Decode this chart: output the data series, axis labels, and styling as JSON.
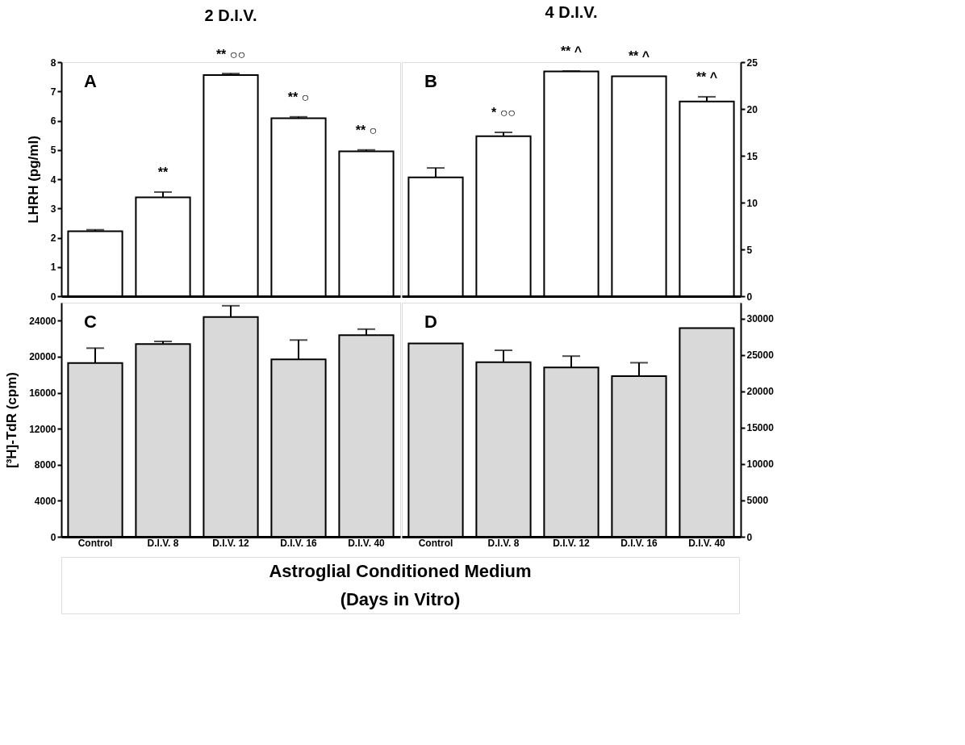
{
  "chart_data": [
    {
      "type": "bar",
      "title": "2 D.I.V.",
      "ylabel": "LHRH (pg/ml)",
      "categories": [
        "Control",
        "D.I.V. 8",
        "D.I.V. 12",
        "D.I.V. 16",
        "D.I.V. 40"
      ],
      "values": [
        2.22,
        3.38,
        7.56,
        6.08,
        4.95
      ],
      "errors": [
        0.05,
        0.18,
        0.05,
        0.05,
        0.05
      ],
      "color": "#ffffff",
      "ylim": [
        0,
        8
      ],
      "yticks": [
        0,
        1,
        2,
        3,
        4,
        5,
        6,
        7,
        8
      ],
      "grid": false,
      "tick_labels": "y",
      "annotations": [
        "A",
        {
          "text": "**",
          "x": "D.I.V. 8",
          "y": 3.56
        },
        {
          "text": "**  ○○",
          "x": "D.I.V. 12",
          "y": 7.59
        },
        {
          "text": "**  ○",
          "x": "D.I.V. 16",
          "y": 6.13
        },
        {
          "text": "**  ○",
          "x": "D.I.V. 40",
          "y": 5.0
        }
      ]
    },
    {
      "type": "bar",
      "title": "4 D.I.V.",
      "categories": [
        "Control",
        "D.I.V. 8",
        "D.I.V. 12",
        "D.I.V. 16",
        "D.I.V. 40"
      ],
      "values": [
        12.7,
        17.1,
        24.0,
        23.5,
        20.8
      ],
      "errors": [
        1.0,
        0.4,
        0.05,
        null,
        0.5
      ],
      "color": "#ffffff",
      "ylim": [
        0,
        25
      ],
      "yticks": [
        0,
        5,
        10,
        15,
        20,
        25
      ],
      "grid": false,
      "tick_labels": "y",
      "annotations": [
        "B",
        {
          "text": "*  ○○",
          "x": "D.I.V. 8",
          "y": 17.5
        },
        {
          "text": "**  ^",
          "x": "D.I.V. 12",
          "y": 24.05
        },
        {
          "text": "**  ^",
          "x": "D.I.V. 16",
          "y": 23.5
        },
        {
          "text": "**  ^",
          "x": "D.I.V. 40",
          "y": 21.3
        }
      ]
    },
    {
      "type": "bar",
      "ylabel": "[³H]-TdR (cpm)",
      "xlabel": "Astroglial Conditioned Medium\n(Days in Vitro)",
      "categories": [
        "Control",
        "D.I.V. 8",
        "D.I.V. 12",
        "D.I.V. 16",
        "D.I.V. 40"
      ],
      "values": [
        19300,
        21400,
        24400,
        19700,
        22400
      ],
      "errors": [
        1650,
        300,
        1260,
        2150,
        660
      ],
      "color": "#d9d9d9",
      "ylim": [
        0,
        26000
      ],
      "yticks": [
        0,
        4000,
        8000,
        12000,
        16000,
        20000,
        24000
      ],
      "grid": false,
      "annotations": [
        "C"
      ]
    },
    {
      "type": "bar",
      "categories": [
        "Control",
        "D.I.V. 8",
        "D.I.V. 12",
        "D.I.V. 16",
        "D.I.V. 40"
      ],
      "values": [
        26600,
        24000,
        23300,
        22100,
        28700
      ],
      "errors": [
        null,
        1650,
        1550,
        1840,
        null
      ],
      "color": "#d9d9d9",
      "ylim": [
        0,
        32200
      ],
      "yticks": [
        0,
        5000,
        10000,
        15000,
        20000,
        25000,
        30000
      ],
      "grid": false,
      "annotations": [
        "D"
      ]
    }
  ]
}
